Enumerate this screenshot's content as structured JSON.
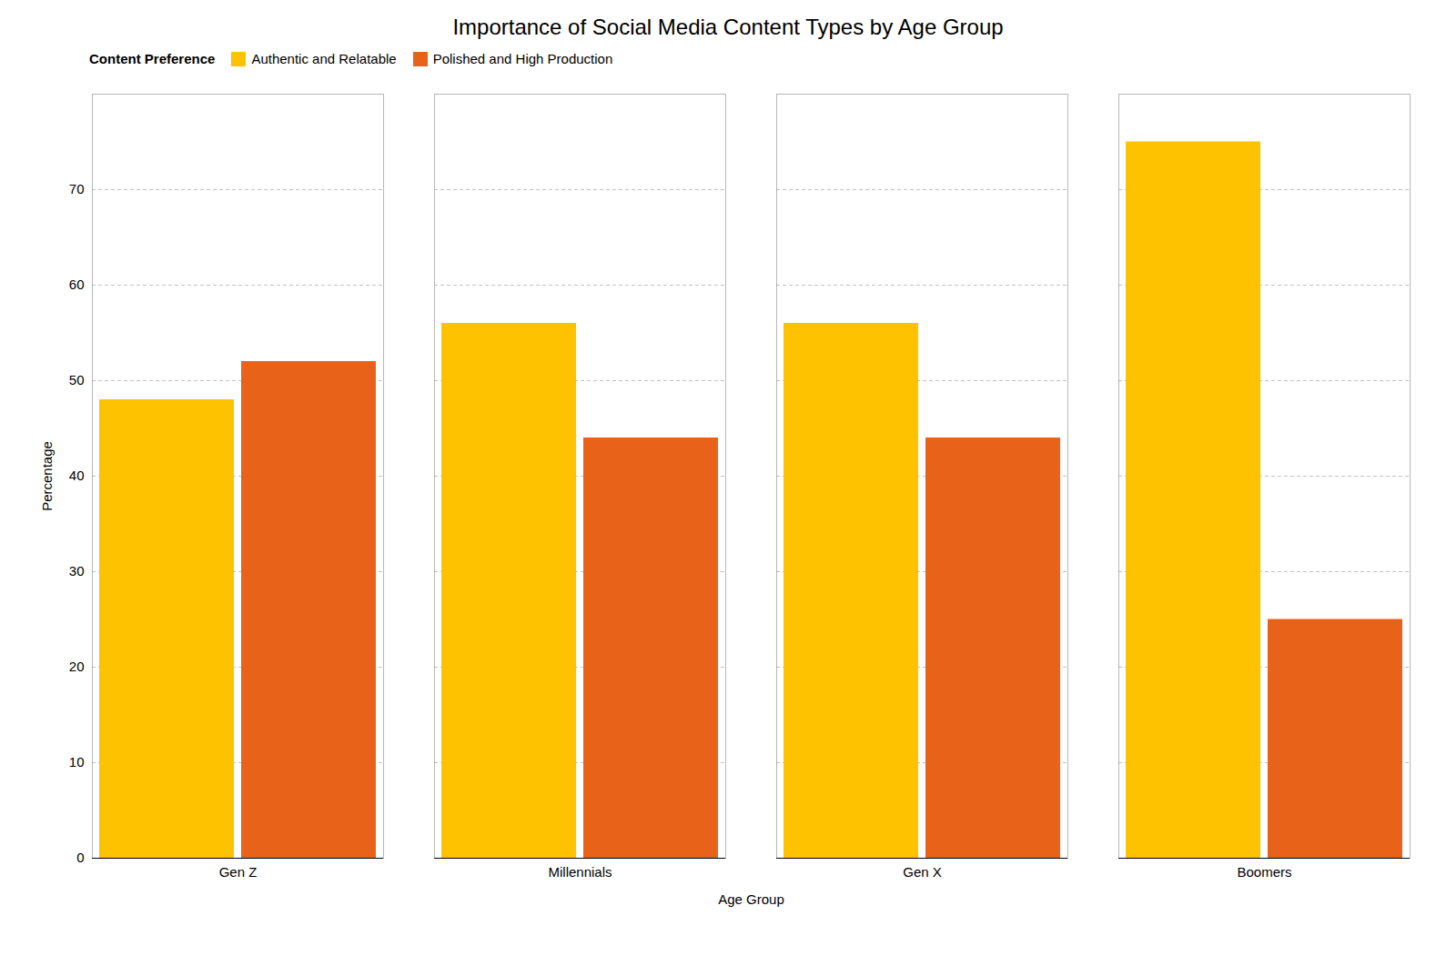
{
  "chart_data": {
    "type": "bar",
    "title": "Importance of Social Media Content Types by Age Group",
    "xlabel": "Age Group",
    "ylabel": "Percentage",
    "categories": [
      "Gen Z",
      "Millennials",
      "Gen X",
      "Boomers"
    ],
    "series": [
      {
        "name": "Authentic and Relatable",
        "values": [
          48,
          56,
          56,
          75
        ],
        "color": "#FFC200"
      },
      {
        "name": "Polished and High Production",
        "values": [
          52,
          44,
          44,
          25
        ],
        "color": "#E8621A"
      }
    ],
    "legend_title": "Content Preference",
    "legend": "upper left",
    "ylim": [
      0,
      80
    ],
    "yticks": [
      0,
      10,
      20,
      30,
      40,
      50,
      60,
      70
    ],
    "grid": true
  }
}
